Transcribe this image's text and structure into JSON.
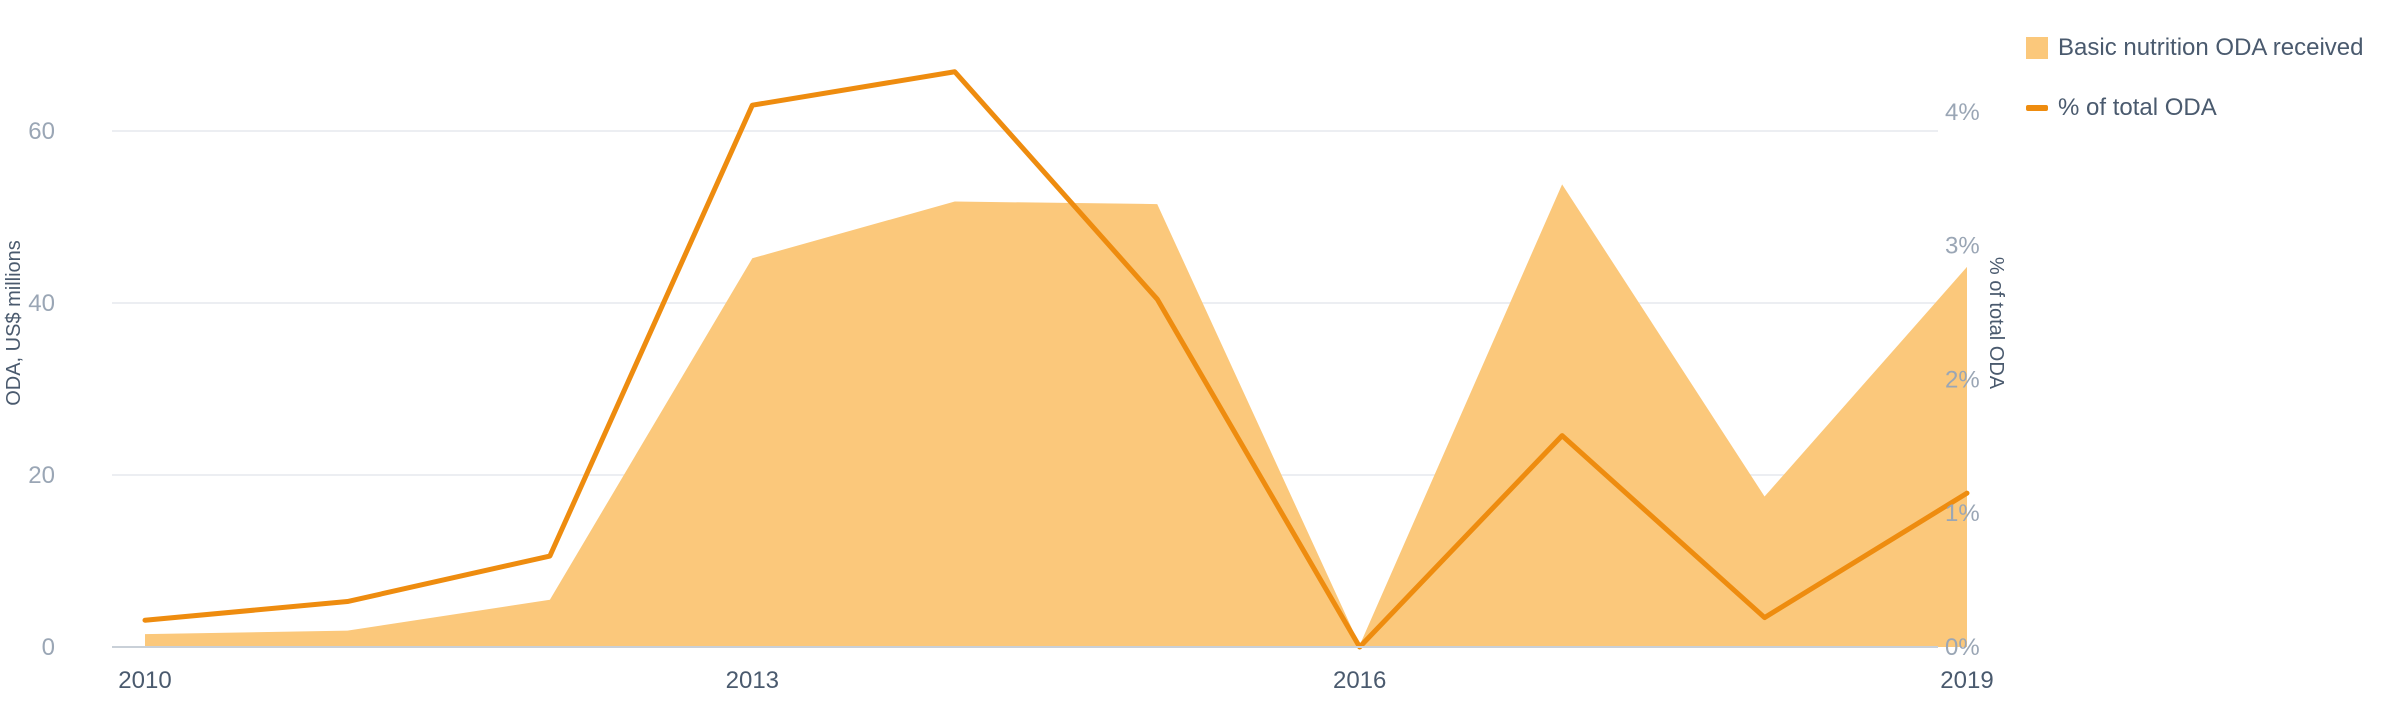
{
  "chart_data": {
    "type": "area",
    "x": [
      2010,
      2011,
      2012,
      2013,
      2014,
      2015,
      2016,
      2017,
      2018,
      2019
    ],
    "x_tick_labels": [
      "2010",
      "2013",
      "2016",
      "2019"
    ],
    "series": [
      {
        "name": "Basic nutrition ODA received",
        "type": "area",
        "axis": "left",
        "color": "#fbc87b",
        "values": [
          1.5,
          1.9,
          5.5,
          45.2,
          51.8,
          51.5,
          0.2,
          53.8,
          17.5,
          44.2
        ]
      },
      {
        "name": "% of total ODA",
        "type": "line",
        "axis": "right",
        "color": "#ee8c0f",
        "values": [
          0.2,
          0.34,
          0.68,
          4.05,
          4.3,
          2.6,
          0.0,
          1.58,
          0.22,
          1.15
        ]
      }
    ],
    "ylabel_left": "ODA, US$ millions",
    "ylabel_right": "% of total ODA",
    "ylim_left": [
      0,
      70
    ],
    "yticks_left": [
      "0",
      "20",
      "40",
      "60"
    ],
    "ylim_right": [
      0,
      4.5
    ],
    "yticks_right": [
      "0%",
      "1%",
      "2%",
      "3%",
      "4%"
    ],
    "grid": true,
    "legend_position": "top-right"
  },
  "legend": {
    "area_label": "Basic nutrition ODA received",
    "line_label": "% of total ODA"
  },
  "axes": {
    "left_title": "ODA, US$ millions",
    "right_title": "% of total ODA"
  }
}
